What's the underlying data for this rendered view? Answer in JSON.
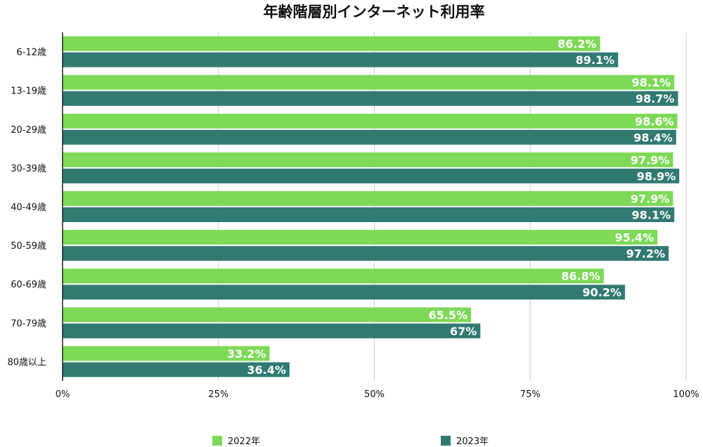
{
  "chart_data": {
    "type": "bar",
    "orientation": "horizontal",
    "title": "年齢階層別インターネット利用率",
    "categories": [
      "6-12歳",
      "13-19歳",
      "20-29歳",
      "30-39歳",
      "40-49歳",
      "50-59歳",
      "60-69歳",
      "70-79歳",
      "80歳以上"
    ],
    "series": [
      {
        "name": "2022年",
        "color": "#7ed957",
        "values": [
          86.2,
          98.1,
          98.6,
          97.9,
          97.9,
          95.4,
          86.8,
          65.5,
          33.2
        ],
        "labels": [
          "86.2%",
          "98.1%",
          "98.6%",
          "97.9%",
          "97.9%",
          "95.4%",
          "86.8%",
          "65.5%",
          "33.2%"
        ]
      },
      {
        "name": "2023年",
        "color": "#317a72",
        "values": [
          89.1,
          98.7,
          98.4,
          98.9,
          98.1,
          97.2,
          90.2,
          67,
          36.4
        ],
        "labels": [
          "89.1%",
          "98.7%",
          "98.4%",
          "98.9%",
          "98.1%",
          "97.2%",
          "90.2%",
          "67%",
          "36.4%"
        ]
      }
    ],
    "xlim": [
      0,
      100
    ],
    "xticks": [
      0,
      25,
      50,
      75,
      100
    ],
    "xtick_labels": [
      "0%",
      "25%",
      "50%",
      "75%",
      "100%"
    ],
    "grid": true,
    "legend_position": "bottom"
  }
}
